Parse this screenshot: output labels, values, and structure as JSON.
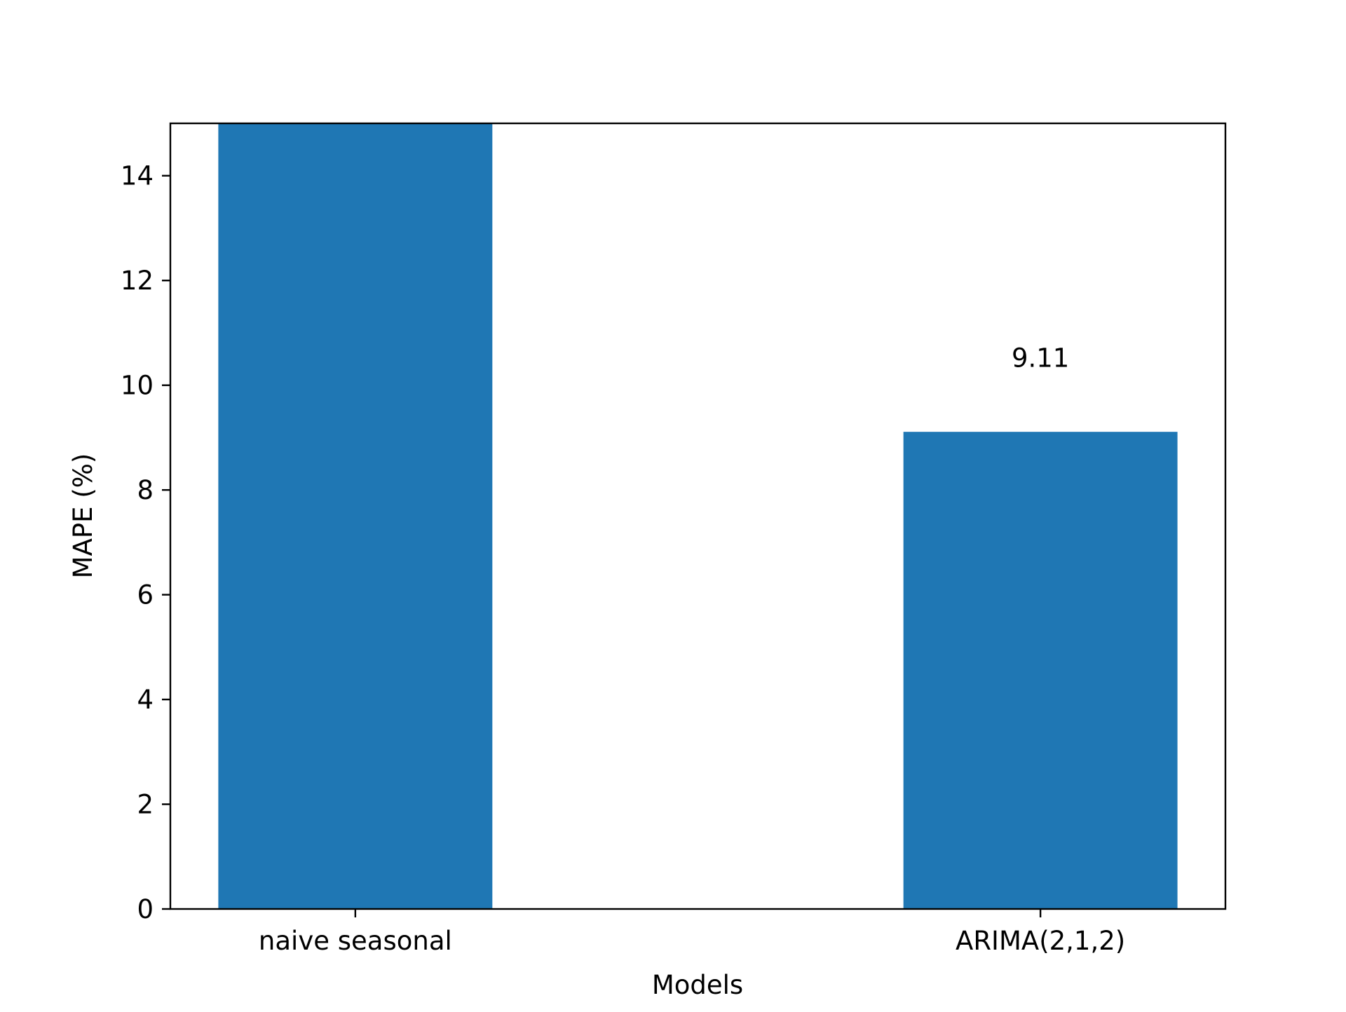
{
  "chart_data": {
    "type": "bar",
    "title": "",
    "xlabel": "Models",
    "ylabel": "MAPE (%)",
    "categories": [
      "naive seasonal",
      "ARIMA(2,1,2)"
    ],
    "values": [
      15.0,
      9.11
    ],
    "data_labels": [
      "",
      "9.11"
    ],
    "ylim": [
      0,
      15
    ],
    "yticks": [
      0,
      2,
      4,
      6,
      8,
      10,
      12,
      14
    ],
    "grid": false,
    "legend": "none",
    "bar_color": "#1f77b4"
  }
}
